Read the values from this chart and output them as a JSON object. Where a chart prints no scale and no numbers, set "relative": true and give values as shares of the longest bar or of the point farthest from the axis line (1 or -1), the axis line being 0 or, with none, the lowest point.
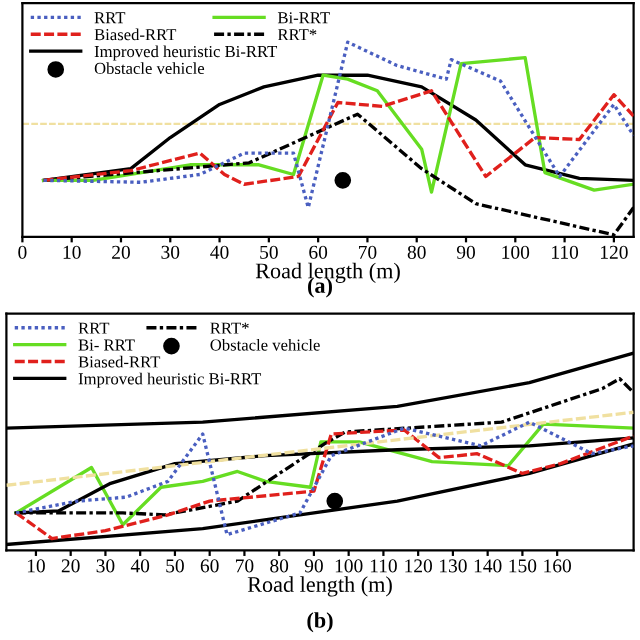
{
  "chart_data": [
    {
      "type": "line",
      "xlabel": "Road length (m)",
      "annotations": [
        "(a)"
      ],
      "relative": true,
      "tick_labels": "x",
      "xlim": [
        0,
        124
      ],
      "xticks": [
        0,
        10,
        20,
        30,
        40,
        50,
        60,
        70,
        80,
        90,
        100,
        110,
        120
      ],
      "legend": "top left",
      "grid": false,
      "ref_lines": [
        {
          "axis": "y",
          "value": 0.58,
          "color": "#f0e0a0",
          "line_style": "dashed"
        }
      ],
      "series": [
        {
          "name": "RRT",
          "color": "#4a5fc0",
          "line_style": "dotted",
          "x": [
            4.3,
            24,
            36,
            45,
            55,
            58,
            66,
            76,
            86,
            87,
            97,
            109,
            120,
            124
          ],
          "values": [
            0.29,
            0.28,
            0.32,
            0.43,
            0.43,
            0.15,
            1.0,
            0.88,
            0.81,
            0.91,
            0.8,
            0.31,
            0.68,
            0.52
          ]
        },
        {
          "name": "Biased-RRT",
          "color": "#e0201c",
          "line_style": "dashed",
          "x": [
            4.3,
            22,
            36,
            41,
            45,
            56,
            64,
            73,
            83,
            94,
            104,
            113,
            120,
            124
          ],
          "values": [
            0.29,
            0.34,
            0.43,
            0.32,
            0.27,
            0.31,
            0.69,
            0.67,
            0.75,
            0.31,
            0.51,
            0.5,
            0.73,
            0.62
          ]
        },
        {
          "name": "Improved heuristic Bi-RRT",
          "color": "#000000",
          "line_style": "solid",
          "x": [
            4.3,
            22,
            30,
            40,
            49,
            60,
            70,
            81,
            92,
            102,
            113,
            124
          ],
          "values": [
            0.29,
            0.35,
            0.51,
            0.68,
            0.77,
            0.83,
            0.83,
            0.77,
            0.6,
            0.37,
            0.3,
            0.29
          ]
        },
        {
          "name": "Obstacle vehicle",
          "type": "scatter",
          "marker": "circle",
          "color": "#000000",
          "x": [
            65
          ],
          "values": [
            0.29
          ]
        },
        {
          "name": "Bi-RRT",
          "color": "#66dd22",
          "line_style": "solid",
          "x": [
            4.3,
            14.3,
            34,
            48,
            55,
            61,
            66,
            72,
            81,
            83,
            89,
            102,
            106,
            116,
            124
          ],
          "values": [
            0.29,
            0.29,
            0.37,
            0.37,
            0.32,
            0.83,
            0.81,
            0.75,
            0.45,
            0.23,
            0.89,
            0.92,
            0.33,
            0.24,
            0.27
          ]
        },
        {
          "name": "RRT*",
          "color": "#000000",
          "line_style": "dashdot",
          "x": [
            4.3,
            46,
            68,
            81,
            92,
            120,
            124
          ],
          "values": [
            0.29,
            0.38,
            0.63,
            0.35,
            0.17,
            0.01,
            0.15
          ]
        }
      ]
    },
    {
      "type": "line",
      "xlabel": "Road length (m)",
      "annotations": [
        "(b)"
      ],
      "relative": true,
      "tick_labels": "x",
      "xlim": [
        1.5,
        182
      ],
      "xticks": [
        10,
        20,
        30,
        40,
        50,
        60,
        70,
        80,
        90,
        100,
        110,
        120,
        130,
        140,
        150,
        160
      ],
      "legend": "top left",
      "grid": false,
      "series": [
        {
          "name": "RRT",
          "color": "#4a5fc0",
          "line_style": "dotted",
          "x": [
            4.3,
            22,
            36,
            48,
            58,
            65,
            86,
            95,
            116,
            138,
            152,
            170,
            182
          ],
          "values": [
            0.19,
            0.25,
            0.27,
            0.35,
            0.59,
            0.08,
            0.19,
            0.48,
            0.62,
            0.53,
            0.65,
            0.49,
            0.53
          ]
        },
        {
          "name": "Bi- RRT",
          "color": "#66dd22",
          "line_style": "solid",
          "x": [
            4.3,
            26,
            35,
            46,
            58,
            68,
            76,
            89,
            92,
            103,
            124,
            146,
            156,
            182
          ],
          "values": [
            0.19,
            0.42,
            0.13,
            0.32,
            0.35,
            0.4,
            0.35,
            0.32,
            0.55,
            0.55,
            0.45,
            0.43,
            0.64,
            0.62
          ]
        },
        {
          "name": "Biased-RRT",
          "color": "#e0201c",
          "line_style": "dashed",
          "x": [
            4.3,
            14.6,
            30,
            48,
            60,
            90,
            95,
            116,
            126,
            137,
            150,
            161,
            182
          ],
          "values": [
            0.19,
            0.06,
            0.1,
            0.18,
            0.25,
            0.3,
            0.59,
            0.61,
            0.47,
            0.49,
            0.39,
            0.44,
            0.58
          ]
        },
        {
          "name": "Improved heuristic Bi-RRT",
          "color": "#000000",
          "line_style": "solid",
          "x": [
            4.3,
            16.5,
            31.5,
            50,
            76,
            114,
            152,
            182
          ],
          "values": [
            0.19,
            0.2,
            0.34,
            0.44,
            0.48,
            0.51,
            0.53,
            0.57
          ]
        },
        {
          "name": "RRT*",
          "color": "#000000",
          "line_style": "dashdot",
          "x": [
            4.3,
            35,
            47,
            68,
            93,
            99,
            144,
            173,
            178,
            182
          ],
          "values": [
            0.19,
            0.19,
            0.18,
            0.25,
            0.54,
            0.6,
            0.65,
            0.82,
            0.87,
            0.8
          ]
        },
        {
          "name": "Obstacle vehicle",
          "type": "scatter",
          "marker": "circle",
          "color": "#000000",
          "x": [
            96
          ],
          "values": [
            0.25
          ]
        },
        {
          "color": "#000000",
          "line_style": "solid",
          "x": [
            1.5,
            58,
            114,
            152,
            182
          ],
          "values": [
            0.62,
            0.65,
            0.73,
            0.85,
            1.0
          ]
        },
        {
          "color": "#000000",
          "line_style": "solid",
          "x": [
            1.5,
            58,
            114,
            152,
            182
          ],
          "values": [
            0.03,
            0.11,
            0.25,
            0.39,
            0.54
          ]
        },
        {
          "color": "#f0e0a0",
          "line_style": "dashed",
          "x": [
            1.5,
            182
          ],
          "values": [
            0.33,
            0.7
          ]
        }
      ]
    }
  ]
}
